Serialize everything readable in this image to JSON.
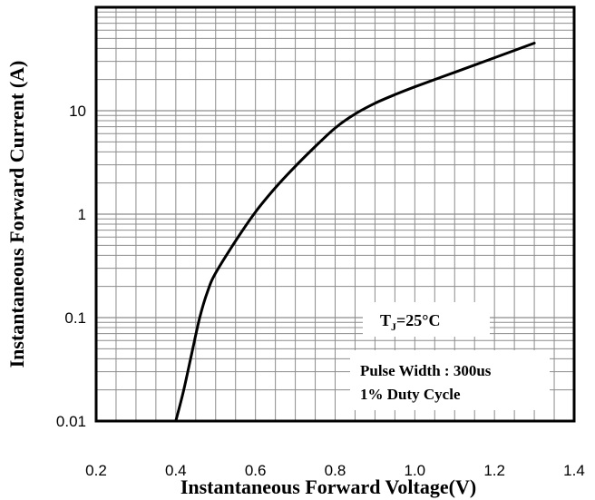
{
  "chart_data": {
    "type": "line",
    "x_scale": "linear",
    "y_scale": "log",
    "xlabel": "Instantaneous Forward Voltage(V)",
    "ylabel": "Instantaneous Forward Current (A)",
    "xlim": [
      0.2,
      1.4
    ],
    "ylim": [
      0.01,
      100
    ],
    "x_ticks": [
      "0.2",
      "0.4",
      "0.6",
      "0.8",
      "1.0",
      "1.2",
      "1.4"
    ],
    "y_ticks": [
      "0.01",
      "0.1",
      "1",
      "10"
    ],
    "grid": true,
    "series": [
      {
        "color": "#000000",
        "x": [
          0.4,
          0.42,
          0.44,
          0.46,
          0.48,
          0.5,
          0.55,
          0.6,
          0.65,
          0.7,
          0.75,
          0.8,
          0.85,
          0.9,
          0.95,
          1.0,
          1.1,
          1.2,
          1.3
        ],
        "y": [
          0.01,
          0.02,
          0.045,
          0.1,
          0.18,
          0.27,
          0.55,
          1.05,
          1.8,
          2.9,
          4.5,
          6.8,
          9.3,
          11.8,
          14.3,
          17.0,
          23.5,
          32.5,
          45.0
        ]
      }
    ],
    "annotations": {
      "temp_main": "T",
      "temp_sub": "J",
      "temp_rest": "=25°C",
      "pulse_width": "Pulse Width : 300us",
      "duty_cycle": "1% Duty Cycle"
    }
  }
}
